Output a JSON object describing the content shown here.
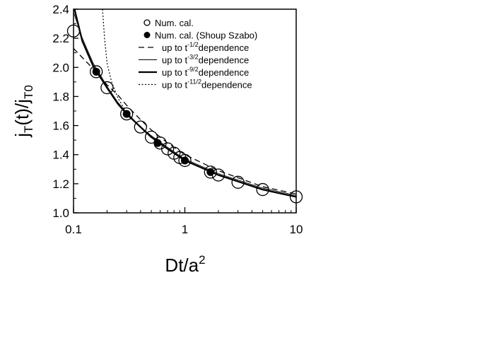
{
  "chart_data": {
    "type": "line",
    "x_scale": "log",
    "xlim": [
      0.1,
      10
    ],
    "ylim": [
      1.0,
      2.4
    ],
    "x_ticks": [
      {
        "value": 0.1,
        "label": "0.1"
      },
      {
        "value": 1,
        "label": "1"
      },
      {
        "value": 10,
        "label": "10"
      }
    ],
    "y_ticks": [
      {
        "value": 1.0,
        "label": "1.0"
      },
      {
        "value": 1.2,
        "label": "1.2"
      },
      {
        "value": 1.4,
        "label": "1.4"
      },
      {
        "value": 1.6,
        "label": "1.6"
      },
      {
        "value": 1.8,
        "label": "1.8"
      },
      {
        "value": 2.0,
        "label": "2.0"
      },
      {
        "value": 2.2,
        "label": "2.2"
      },
      {
        "value": 2.4,
        "label": "2.4"
      }
    ],
    "xlabel": {
      "base": "Dt/a",
      "sup": "2"
    },
    "ylabel": {
      "j1": "j",
      "s1": "T",
      "mid": "(t)/j",
      "s2": "T0"
    },
    "grid": false,
    "legend_position": "top-right",
    "series": [
      {
        "name": "Num. cal.",
        "style": "open-circle",
        "x": [
          0.1,
          0.16,
          0.2,
          0.3,
          0.4,
          0.5,
          0.6,
          0.7,
          0.8,
          0.9,
          1.0,
          1.7,
          2.0,
          3.0,
          5.0,
          10.0
        ],
        "y": [
          2.25,
          1.97,
          1.86,
          1.68,
          1.59,
          1.52,
          1.48,
          1.44,
          1.41,
          1.38,
          1.36,
          1.28,
          1.26,
          1.21,
          1.16,
          1.11
        ]
      },
      {
        "name": "Num. cal. (Shoup Szabo)",
        "style": "filled-circle",
        "x": [
          0.16,
          0.3,
          0.57,
          1.0,
          1.7
        ],
        "y": [
          1.97,
          1.68,
          1.48,
          1.36,
          1.28
        ]
      },
      {
        "name": "up to t",
        "name_sup": "-1/2",
        "name_suffix": "dependence",
        "style": "dashed",
        "x": [
          0.1,
          0.13,
          0.16,
          0.2,
          0.25,
          0.3,
          0.4,
          0.5,
          0.7,
          1.0,
          2.0,
          5.0,
          10.0
        ],
        "y": [
          2.13,
          2.04,
          1.97,
          1.88,
          1.81,
          1.74,
          1.64,
          1.57,
          1.48,
          1.4,
          1.29,
          1.18,
          1.13
        ]
      },
      {
        "name": "up to t",
        "name_sup": "-3/2",
        "name_suffix": "dependence",
        "style": "thin-solid",
        "x": [
          0.1,
          0.12,
          0.15,
          0.2,
          0.25,
          0.3,
          0.4,
          0.5,
          0.7,
          1.0,
          2.0,
          5.0,
          10.0
        ],
        "y": [
          2.38,
          2.2,
          2.03,
          1.87,
          1.76,
          1.69,
          1.59,
          1.53,
          1.45,
          1.37,
          1.27,
          1.17,
          1.12
        ]
      },
      {
        "name": "up to t",
        "name_sup": "-9/2",
        "name_suffix": "dependence",
        "style": "thick-solid",
        "x": [
          0.102,
          0.12,
          0.15,
          0.2,
          0.25,
          0.3,
          0.4,
          0.5,
          0.7,
          1.0,
          2.0,
          5.0,
          10.0
        ],
        "y": [
          2.4,
          2.18,
          2.01,
          1.86,
          1.75,
          1.68,
          1.59,
          1.52,
          1.44,
          1.36,
          1.26,
          1.16,
          1.11
        ]
      },
      {
        "name": "up to t",
        "name_sup": "-11/2",
        "name_suffix": "dependence",
        "style": "dotted",
        "x": [
          0.182,
          0.19,
          0.2,
          0.22,
          0.25,
          0.3,
          0.4,
          0.5,
          0.7,
          1.0,
          2.0,
          5.0,
          10.0
        ],
        "y": [
          2.4,
          2.2,
          2.03,
          1.9,
          1.79,
          1.69,
          1.59,
          1.52,
          1.44,
          1.36,
          1.26,
          1.16,
          1.11
        ]
      }
    ]
  }
}
